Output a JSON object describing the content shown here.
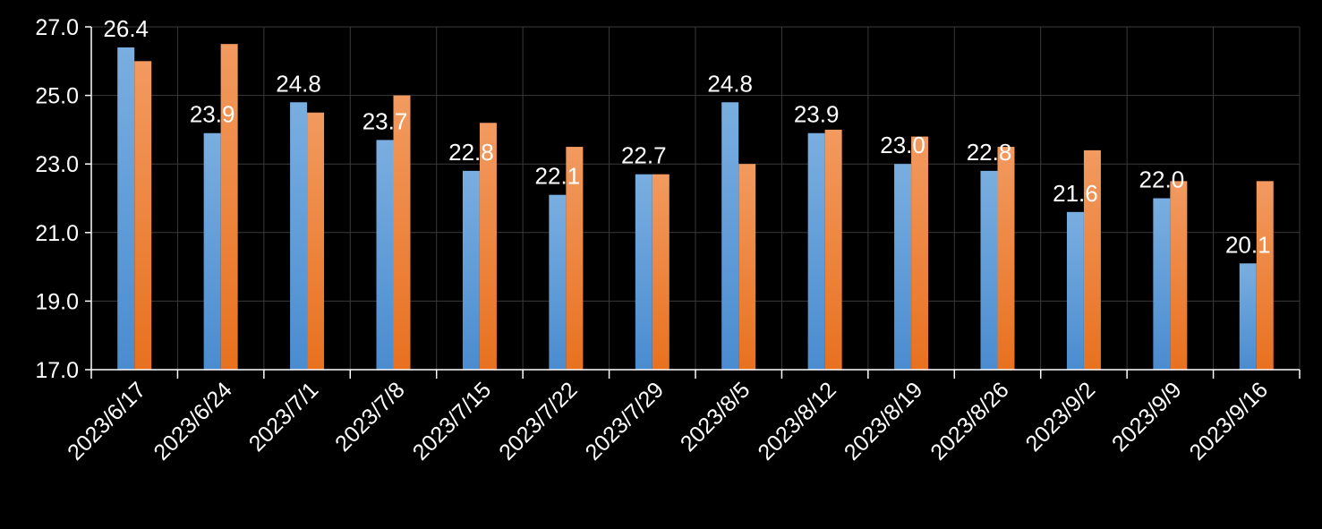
{
  "chart_data": {
    "type": "bar",
    "categories": [
      "2023/6/17",
      "2023/6/24",
      "2023/7/1",
      "2023/7/8",
      "2023/7/15",
      "2023/7/22",
      "2023/7/29",
      "2023/8/5",
      "2023/8/12",
      "2023/8/19",
      "2023/8/26",
      "2023/9/2",
      "2023/9/9",
      "2023/9/16"
    ],
    "series": [
      {
        "values": [
          26.4,
          23.9,
          24.8,
          23.7,
          22.8,
          22.1,
          22.7,
          24.8,
          23.9,
          23.0,
          22.8,
          21.6,
          22.0,
          20.1
        ],
        "color": "#5b9bd5",
        "data_labels": true
      },
      {
        "values": [
          26.0,
          26.5,
          24.5,
          25.0,
          24.2,
          23.5,
          22.7,
          23.0,
          24.0,
          23.8,
          23.5,
          23.4,
          22.5,
          22.5
        ],
        "color": "#ed7d31",
        "data_labels": false
      }
    ],
    "y_ticks": [
      "17.0",
      "19.0",
      "21.0",
      "23.0",
      "25.0",
      "27.0"
    ],
    "ylim": [
      17,
      27
    ],
    "grid": true,
    "title": "",
    "xlabel": "",
    "ylabel": "",
    "background": "#000000"
  }
}
